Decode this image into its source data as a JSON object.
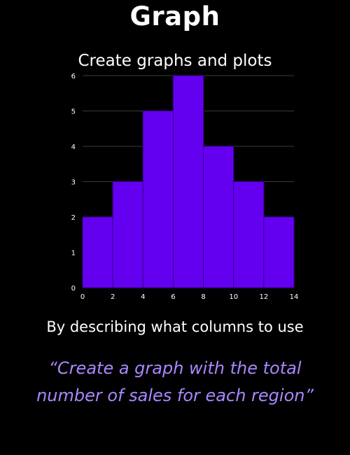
{
  "header": {
    "title": "Graph",
    "subtitle": "Create graphs and plots"
  },
  "caption": "By describing what columns to use",
  "prompt_example": "“Create a graph with the total number of sales for each region”",
  "colors": {
    "background": "#000000",
    "bar": "#6400f0",
    "bar_border": "#3a0090",
    "prompt_text": "#a888ff",
    "gridline": "#3a3a3a"
  },
  "chart_data": {
    "type": "bar",
    "bins": [
      [
        0,
        2
      ],
      [
        2,
        4
      ],
      [
        4,
        6
      ],
      [
        6,
        8
      ],
      [
        8,
        10
      ],
      [
        10,
        12
      ],
      [
        12,
        14
      ]
    ],
    "values": [
      2,
      3,
      5,
      6,
      4,
      3,
      2
    ],
    "x_ticks": [
      0,
      2,
      4,
      6,
      8,
      10,
      12,
      14
    ],
    "y_ticks": [
      0,
      1,
      2,
      3,
      4,
      5,
      6
    ],
    "xlim": [
      0,
      14
    ],
    "ylim": [
      0,
      6
    ],
    "grid": "horizontal"
  }
}
